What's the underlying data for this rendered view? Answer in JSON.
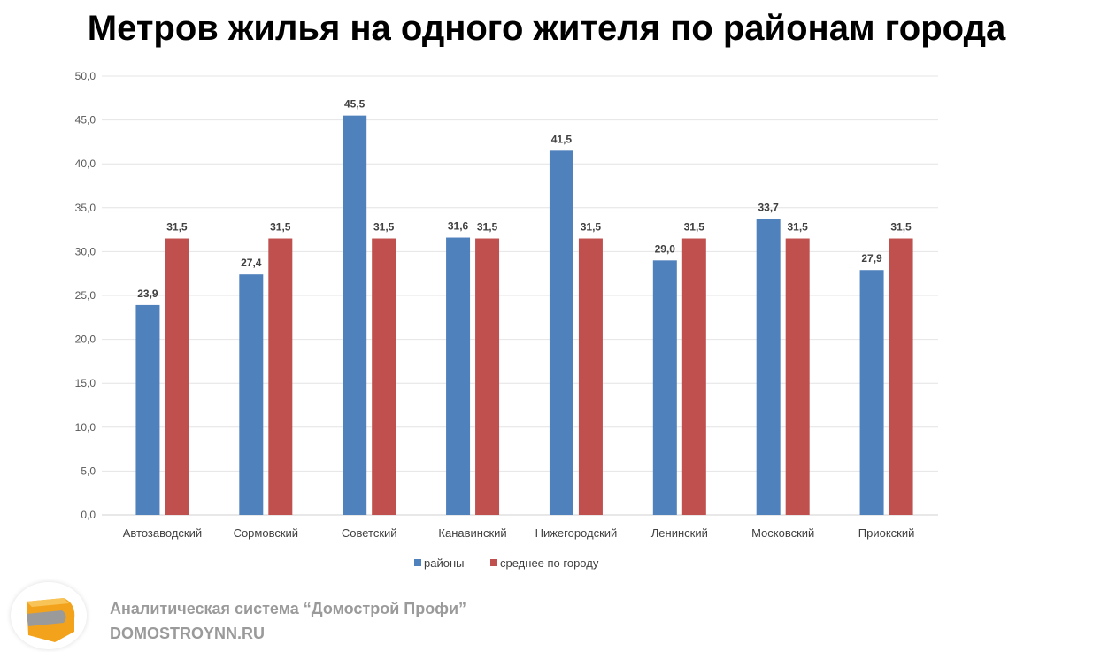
{
  "chart_data": {
    "type": "bar",
    "title": "Метров жилья на одного жителя по районам города",
    "categories": [
      "Автозаводский",
      "Сормовский",
      "Советский",
      "Канавинский",
      "Нижегородский",
      "Ленинский",
      "Московский",
      "Приокский"
    ],
    "series": [
      {
        "name": "районы",
        "color": "#4f81bd",
        "values": [
          23.9,
          27.4,
          45.5,
          31.6,
          41.5,
          29.0,
          33.7,
          27.9
        ]
      },
      {
        "name": "среднее по городу",
        "color": "#c0504d",
        "values": [
          31.5,
          31.5,
          31.5,
          31.5,
          31.5,
          31.5,
          31.5,
          31.5
        ]
      }
    ],
    "ylim": [
      0,
      50
    ],
    "yticks": [
      "0,0",
      "5,0",
      "10,0",
      "15,0",
      "20,0",
      "25,0",
      "30,0",
      "35,0",
      "40,0",
      "45,0",
      "50,0"
    ],
    "grid": true,
    "legend": "bottom",
    "xlabel": "",
    "ylabel": ""
  },
  "footer": {
    "line1": "Аналитическая система “Домострой Профи”",
    "line2": "DOMOSTROYNN.RU",
    "logo": "domostroy-logo"
  }
}
